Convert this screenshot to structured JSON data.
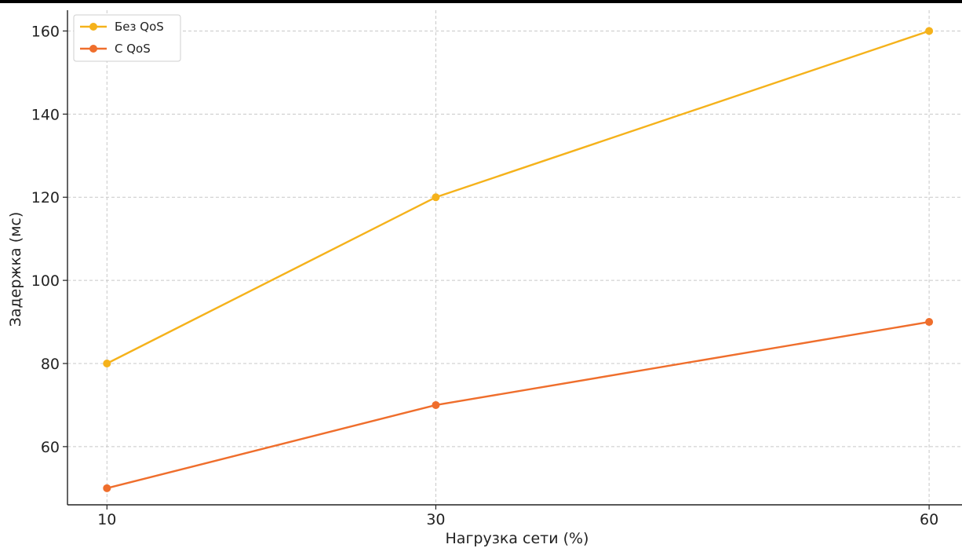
{
  "chart_data": {
    "type": "line",
    "title": "",
    "xlabel": "Нагрузка сети (%)",
    "ylabel": "Задержка (мс)",
    "x": [
      10,
      30,
      60
    ],
    "x_tick_labels": [
      "10",
      "30",
      "60"
    ],
    "y_ticks": [
      60,
      80,
      100,
      120,
      140,
      160
    ],
    "y_tick_labels": [
      "60",
      "80",
      "100",
      "120",
      "140",
      "160"
    ],
    "xlim": [
      7.6,
      62
    ],
    "ylim": [
      46,
      165
    ],
    "grid": true,
    "legend_position": "top-left",
    "series": [
      {
        "name": "Без QoS",
        "color": "#f5b21b",
        "values": [
          80,
          120,
          160
        ]
      },
      {
        "name": "С QoS",
        "color": "#ef6e2c",
        "values": [
          50,
          70,
          90
        ]
      }
    ]
  }
}
